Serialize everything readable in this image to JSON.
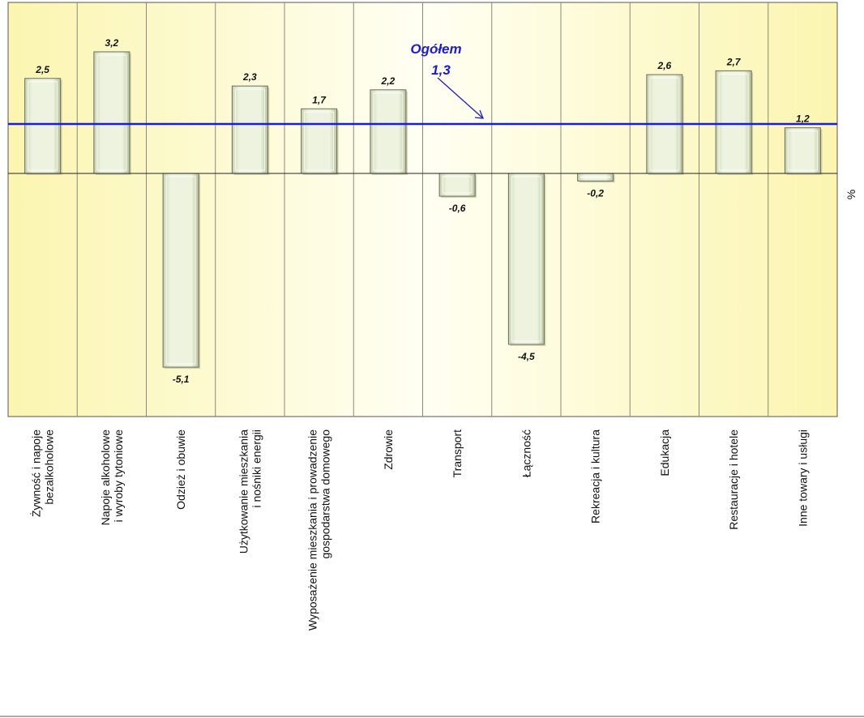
{
  "chart_data": {
    "type": "bar",
    "categories": [
      [
        "Żywność i napoje",
        "bezalkoholowe"
      ],
      [
        "Napoje alkoholowe",
        "i wyroby tytoniowe"
      ],
      [
        "Odzież i obuwie"
      ],
      [
        "Użytkowanie mieszkania",
        "i nośniki energii"
      ],
      [
        "Wyposażenie mieszkania i prowadzenie",
        "gospodarstwa domowego"
      ],
      [
        "Zdrowie"
      ],
      [
        "Transport"
      ],
      [
        "Łączność"
      ],
      [
        "Rekreacja i kultura"
      ],
      [
        "Edukacja"
      ],
      [
        "Restauracje i hotele"
      ],
      [
        "Inne towary i usługi"
      ]
    ],
    "values": [
      2.5,
      3.2,
      -5.1,
      2.3,
      1.7,
      2.2,
      -0.6,
      -4.5,
      -0.2,
      2.6,
      2.7,
      1.2
    ],
    "value_labels": [
      "2,5",
      "3,2",
      "-5,1",
      "2,3",
      "1,7",
      "2,2",
      "-0,6",
      "-4,5",
      "-0,2",
      "2,6",
      "2,7",
      "1,2"
    ],
    "reference_line": {
      "value": 1.3,
      "label": "Ogółem",
      "value_label": "1,3",
      "color": "#1a1ae0"
    },
    "ylabel": "%",
    "ylim": [
      -6.4,
      4.5
    ],
    "grid": false,
    "legend": "none",
    "colors": {
      "bar_fill": "#e4ecd2",
      "bar_edge": "#6c6c5a",
      "plot_background": "#fdf9c6",
      "plot_background_center": "#fffff0",
      "reference_line": "#1a1ae0"
    }
  }
}
